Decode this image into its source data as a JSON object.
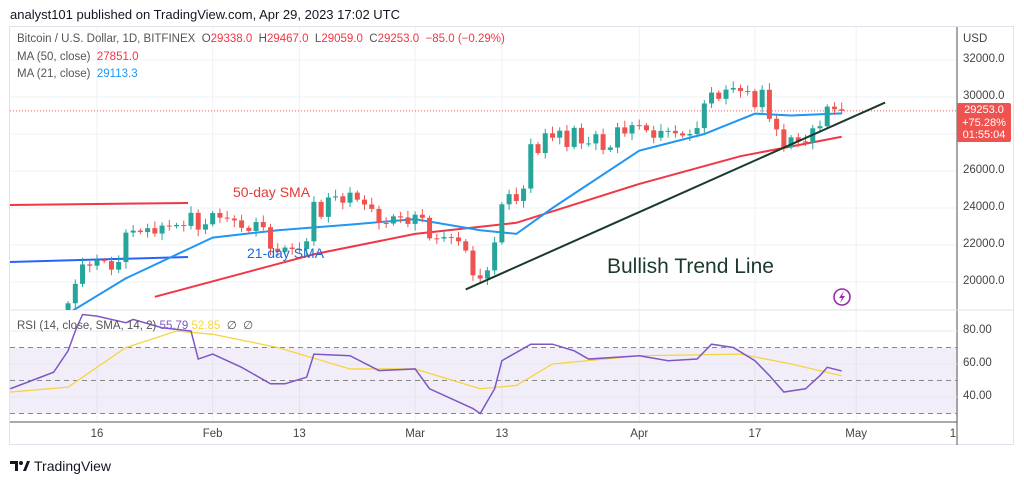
{
  "header": {
    "published": "analyst101 published on TradingView.com, Apr 29, 2023 17:02 UTC"
  },
  "legend": {
    "symbol": "Bitcoin / U.S. Dollar, 1D, BITFINEX",
    "o_label": "O",
    "o": "29338.0",
    "h_label": "H",
    "h": "29467.0",
    "l_label": "L",
    "l": "29059.0",
    "c_label": "C",
    "c": "29253.0",
    "change": "−85.0 (−0.29%)",
    "ma50_label": "MA (50, close)",
    "ma50": "27851.0",
    "ma21_label": "MA (21, close)",
    "ma21": "29113.3",
    "rsi_label": "RSI (14, close, SMA, 14, 2)",
    "rsi": "55.79",
    "rsi_sma": "52.85",
    "na1": "∅",
    "na2": "∅"
  },
  "price_badge": {
    "price": "29253.0",
    "change_pct": "+75.28%",
    "countdown": "01:55:04"
  },
  "brand": "TradingView",
  "colors": {
    "up": "#26a69a",
    "down": "#ef5350",
    "ma50": "#f23645",
    "ma21": "#2196f3",
    "rsi": "#7e57c2",
    "rsi_sma": "#f5d53d",
    "trend": "#1b3a2b"
  },
  "annotations": {
    "sma50": "50-day SMA",
    "sma21": "21-day SMA",
    "trend": "Bullish Trend Line"
  },
  "chart_data": {
    "type": "candlestick",
    "currency": "USD",
    "y_ticks": [
      "32000.0",
      "30000.0",
      "26000.0",
      "24000.0",
      "22000.0",
      "20000.0"
    ],
    "ylim": [
      19400,
      33200
    ],
    "rsi_ticks": [
      "80.00",
      "60.00",
      "40.00"
    ],
    "rsi_levels": [
      70,
      50,
      30
    ],
    "x_ticks": [
      {
        "label": "16",
        "date": "2023-01-16"
      },
      {
        "label": "Feb",
        "date": "2023-02-01"
      },
      {
        "label": "13",
        "date": "2023-02-13"
      },
      {
        "label": "Mar",
        "date": "2023-03-01"
      },
      {
        "label": "13",
        "date": "2023-03-13"
      },
      {
        "label": "Apr",
        "date": "2023-04-01"
      },
      {
        "label": "17",
        "date": "2023-04-17"
      },
      {
        "label": "May",
        "date": "2023-05-01"
      },
      {
        "label": "1",
        "date": "2023-05-15"
      }
    ],
    "closes_start": "2023-01-12",
    "closes": [
      18850,
      19900,
      20950,
      20880,
      21180,
      21130,
      20670,
      21080,
      22670,
      22780,
      22700,
      22910,
      22620,
      23050,
      23010,
      23080,
      23030,
      23740,
      22830,
      23120,
      23730,
      23480,
      23430,
      23330,
      22930,
      22760,
      23240,
      22960,
      21800,
      21630,
      21860,
      21780,
      21780,
      22200,
      24330,
      23520,
      24570,
      24630,
      24290,
      24830,
      24450,
      24190,
      23950,
      23190,
      23160,
      23550,
      23490,
      23140,
      23640,
      23470,
      22360,
      22350,
      22430,
      22410,
      22200,
      21700,
      20360,
      20190,
      20630,
      22140,
      24200,
      24750,
      24380,
      25050,
      27450,
      26970,
      28040,
      27800,
      28180,
      27300,
      28330,
      27490,
      27490,
      27990,
      27140,
      27270,
      28360,
      28030,
      28480,
      28470,
      28200,
      27800,
      28170,
      28170,
      28040,
      27920,
      28000,
      28320,
      29650,
      30240,
      29900,
      30400,
      30490,
      30320,
      30320,
      29450,
      30390,
      28820,
      28250,
      27280,
      27820,
      27600,
      27530,
      28310,
      28420,
      29480,
      29340,
      29253
    ],
    "ma21": [
      [
        "2023-01-12",
        18300
      ],
      [
        "2023-01-20",
        20200
      ],
      [
        "2023-02-01",
        22400
      ],
      [
        "2023-02-10",
        22800
      ],
      [
        "2023-02-20",
        23100
      ],
      [
        "2023-03-01",
        23400
      ],
      [
        "2023-03-10",
        22800
      ],
      [
        "2023-03-15",
        22600
      ],
      [
        "2023-03-20",
        24000
      ],
      [
        "2023-04-01",
        27100
      ],
      [
        "2023-04-10",
        28000
      ],
      [
        "2023-04-17",
        29100
      ],
      [
        "2023-04-22",
        29000
      ],
      [
        "2023-04-29",
        29113.3
      ]
    ],
    "ma50": [
      [
        "2023-01-24",
        19200
      ],
      [
        "2023-02-15",
        21500
      ],
      [
        "2023-03-01",
        22600
      ],
      [
        "2023-03-15",
        23200
      ],
      [
        "2023-04-01",
        25300
      ],
      [
        "2023-04-15",
        26800
      ],
      [
        "2023-04-29",
        27851
      ]
    ],
    "rsi": [
      [
        "2023-01-04",
        45
      ],
      [
        "2023-01-07",
        50
      ],
      [
        "2023-01-10",
        55
      ],
      [
        "2023-01-12",
        68
      ],
      [
        "2023-01-13",
        80
      ],
      [
        "2023-01-14",
        90
      ],
      [
        "2023-01-16",
        89
      ],
      [
        "2023-01-20",
        85
      ],
      [
        "2023-01-21",
        87
      ],
      [
        "2023-01-25",
        82
      ],
      [
        "2023-01-29",
        80
      ],
      [
        "2023-01-30",
        63
      ],
      [
        "2023-02-01",
        66
      ],
      [
        "2023-02-05",
        58
      ],
      [
        "2023-02-09",
        48
      ],
      [
        "2023-02-11",
        48
      ],
      [
        "2023-02-14",
        52
      ],
      [
        "2023-02-15",
        66
      ],
      [
        "2023-02-20",
        65
      ],
      [
        "2023-02-24",
        56
      ],
      [
        "2023-03-01",
        57
      ],
      [
        "2023-03-03",
        45
      ],
      [
        "2023-03-09",
        33
      ],
      [
        "2023-03-10",
        30
      ],
      [
        "2023-03-12",
        45
      ],
      [
        "2023-03-13",
        62
      ],
      [
        "2023-03-17",
        72
      ],
      [
        "2023-03-20",
        72
      ],
      [
        "2023-03-23",
        68
      ],
      [
        "2023-03-25",
        63
      ],
      [
        "2023-04-01",
        65
      ],
      [
        "2023-04-05",
        62
      ],
      [
        "2023-04-09",
        63
      ],
      [
        "2023-04-11",
        72
      ],
      [
        "2023-04-14",
        70
      ],
      [
        "2023-04-17",
        62
      ],
      [
        "2023-04-19",
        53
      ],
      [
        "2023-04-21",
        43
      ],
      [
        "2023-04-24",
        45
      ],
      [
        "2023-04-26",
        53
      ],
      [
        "2023-04-27",
        58
      ],
      [
        "2023-04-29",
        55.79
      ]
    ],
    "rsi_sma": [
      [
        "2023-01-04",
        43
      ],
      [
        "2023-01-12",
        46
      ],
      [
        "2023-01-20",
        70
      ],
      [
        "2023-01-27",
        80
      ],
      [
        "2023-02-01",
        78
      ],
      [
        "2023-02-10",
        70
      ],
      [
        "2023-02-20",
        57
      ],
      [
        "2023-03-01",
        57
      ],
      [
        "2023-03-10",
        45
      ],
      [
        "2023-03-15",
        47
      ],
      [
        "2023-03-20",
        60
      ],
      [
        "2023-04-01",
        65
      ],
      [
        "2023-04-15",
        66
      ],
      [
        "2023-04-22",
        60
      ],
      [
        "2023-04-29",
        52.85
      ]
    ],
    "trend_line": [
      [
        "2023-03-08",
        19600
      ],
      [
        "2023-05-05",
        29700
      ]
    ]
  }
}
